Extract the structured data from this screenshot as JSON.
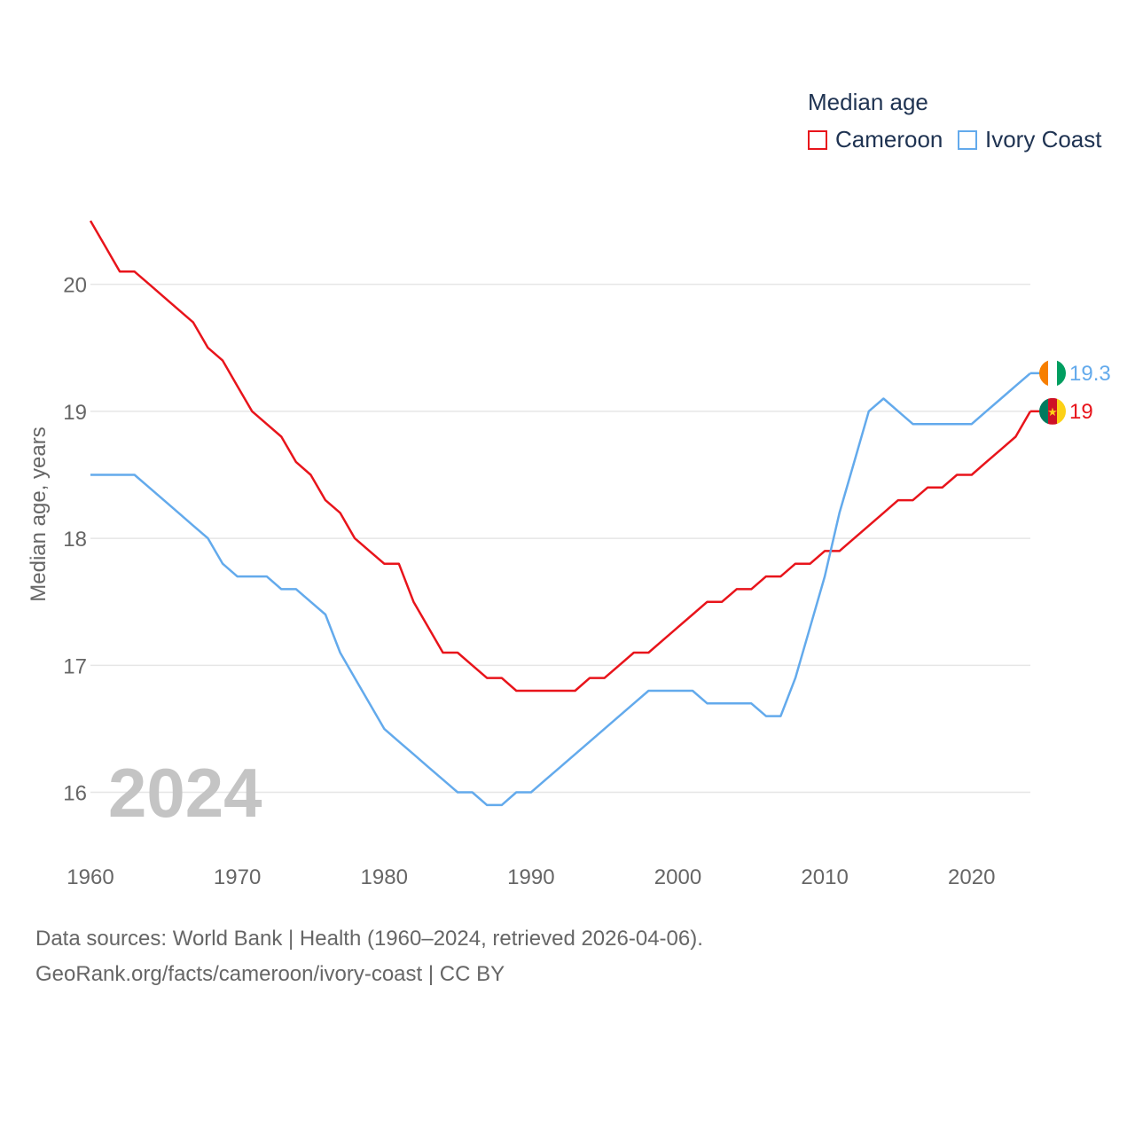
{
  "legend": {
    "title": "Median age",
    "items": [
      {
        "name": "Cameroon",
        "color": "#e8141b"
      },
      {
        "name": "Ivory Coast",
        "color": "#63aaec"
      }
    ]
  },
  "year_overlay": "2024",
  "source": {
    "line1": "Data sources: World Bank | Health (1960–2024, retrieved 2026-04-06).",
    "line2": "GeoRank.org/facts/cameroon/ivory-coast | CC BY"
  },
  "chart_data": {
    "type": "line",
    "title": "Median age",
    "xlabel": "",
    "ylabel": "Median age, years",
    "xlim": [
      1960,
      2024
    ],
    "ylim": [
      15.55,
      20.5
    ],
    "x_ticks": [
      1960,
      1970,
      1980,
      1990,
      2000,
      2010,
      2020
    ],
    "y_ticks": [
      16,
      17,
      18,
      19,
      20
    ],
    "grid": true,
    "x": [
      1960,
      1961,
      1962,
      1963,
      1964,
      1965,
      1966,
      1967,
      1968,
      1969,
      1970,
      1971,
      1972,
      1973,
      1974,
      1975,
      1976,
      1977,
      1978,
      1979,
      1980,
      1981,
      1982,
      1983,
      1984,
      1985,
      1986,
      1987,
      1988,
      1989,
      1990,
      1991,
      1992,
      1993,
      1994,
      1995,
      1996,
      1997,
      1998,
      1999,
      2000,
      2001,
      2002,
      2003,
      2004,
      2005,
      2006,
      2007,
      2008,
      2009,
      2010,
      2011,
      2012,
      2013,
      2014,
      2015,
      2016,
      2017,
      2018,
      2019,
      2020,
      2021,
      2022,
      2023,
      2024
    ],
    "series": [
      {
        "name": "Cameroon",
        "color": "#e8141b",
        "end_label": "19",
        "flag": "cameroon-flag",
        "values": [
          20.5,
          20.3,
          20.1,
          20.1,
          20.0,
          19.9,
          19.8,
          19.7,
          19.5,
          19.4,
          19.2,
          19.0,
          18.9,
          18.8,
          18.6,
          18.5,
          18.3,
          18.2,
          18.0,
          17.9,
          17.8,
          17.8,
          17.5,
          17.3,
          17.1,
          17.1,
          17.0,
          16.9,
          16.9,
          16.8,
          16.8,
          16.8,
          16.8,
          16.8,
          16.9,
          16.9,
          17.0,
          17.1,
          17.1,
          17.2,
          17.3,
          17.4,
          17.5,
          17.5,
          17.6,
          17.6,
          17.7,
          17.7,
          17.8,
          17.8,
          17.9,
          17.9,
          18.0,
          18.1,
          18.2,
          18.3,
          18.3,
          18.4,
          18.4,
          18.5,
          18.5,
          18.6,
          18.7,
          18.8,
          19.0
        ]
      },
      {
        "name": "Ivory Coast",
        "color": "#63aaec",
        "end_label": "19.3",
        "flag": "ivory-coast-flag",
        "values": [
          18.5,
          18.5,
          18.5,
          18.5,
          18.4,
          18.3,
          18.2,
          18.1,
          18.0,
          17.8,
          17.7,
          17.7,
          17.7,
          17.6,
          17.6,
          17.5,
          17.4,
          17.1,
          16.9,
          16.7,
          16.5,
          16.4,
          16.3,
          16.2,
          16.1,
          16.0,
          16.0,
          15.9,
          15.9,
          16.0,
          16.0,
          16.1,
          16.2,
          16.3,
          16.4,
          16.5,
          16.6,
          16.7,
          16.8,
          16.8,
          16.8,
          16.8,
          16.7,
          16.7,
          16.7,
          16.7,
          16.6,
          16.6,
          16.9,
          17.3,
          17.7,
          18.2,
          18.6,
          19.0,
          19.1,
          19.0,
          18.9,
          18.9,
          18.9,
          18.9,
          18.9,
          19.0,
          19.1,
          19.2,
          19.3
        ]
      }
    ]
  }
}
